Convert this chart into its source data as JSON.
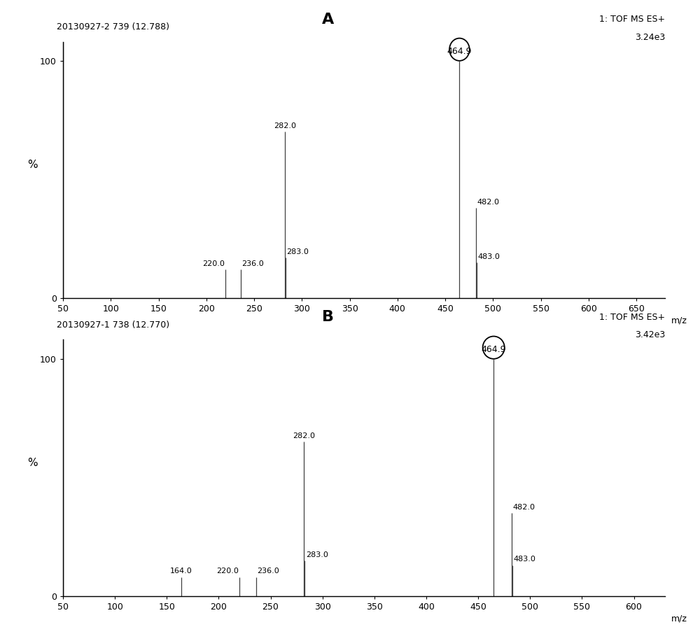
{
  "panel_A": {
    "title": "20130927-2 739 (12.788)",
    "label": "A",
    "info_line1": "1: TOF MS ES+",
    "info_line2": "3.24e3",
    "xlim": [
      50,
      680
    ],
    "ylim": [
      0,
      100
    ],
    "xticks": [
      50,
      100,
      150,
      200,
      250,
      300,
      350,
      400,
      450,
      500,
      550,
      600,
      650
    ],
    "peaks": [
      {
        "mz": 220.0,
        "intensity": 12,
        "label": "220.0",
        "label_side": "left",
        "circled": false
      },
      {
        "mz": 236.0,
        "intensity": 12,
        "label": "236.0",
        "label_side": "right",
        "circled": false
      },
      {
        "mz": 282.0,
        "intensity": 70,
        "label": "282.0",
        "label_side": "center",
        "circled": false
      },
      {
        "mz": 283.0,
        "intensity": 17,
        "label": "283.0",
        "label_side": "right",
        "circled": false
      },
      {
        "mz": 464.9,
        "intensity": 100,
        "label": "464.9",
        "label_side": "center",
        "circled": true
      },
      {
        "mz": 482.0,
        "intensity": 38,
        "label": "482.0",
        "label_side": "right",
        "circled": false
      },
      {
        "mz": 483.0,
        "intensity": 15,
        "label": "483.0",
        "label_side": "right",
        "circled": false
      }
    ]
  },
  "panel_B": {
    "title": "20130927-1 738 (12.770)",
    "label": "B",
    "info_line1": "1: TOF MS ES+",
    "info_line2": "3.42e3",
    "xlim": [
      50,
      630
    ],
    "ylim": [
      0,
      100
    ],
    "xticks": [
      50,
      100,
      150,
      200,
      250,
      300,
      350,
      400,
      450,
      500,
      550,
      600
    ],
    "peaks": [
      {
        "mz": 164.0,
        "intensity": 8,
        "label": "164.0",
        "label_side": "center",
        "circled": false
      },
      {
        "mz": 220.0,
        "intensity": 8,
        "label": "220.0",
        "label_side": "left",
        "circled": false
      },
      {
        "mz": 236.0,
        "intensity": 8,
        "label": "236.0",
        "label_side": "right",
        "circled": false
      },
      {
        "mz": 282.0,
        "intensity": 65,
        "label": "282.0",
        "label_side": "center",
        "circled": false
      },
      {
        "mz": 283.0,
        "intensity": 15,
        "label": "283.0",
        "label_side": "right",
        "circled": false
      },
      {
        "mz": 464.9,
        "intensity": 100,
        "label": "464.9",
        "label_side": "center",
        "circled": true
      },
      {
        "mz": 482.0,
        "intensity": 35,
        "label": "482.0",
        "label_side": "right",
        "circled": false
      },
      {
        "mz": 483.0,
        "intensity": 13,
        "label": "483.0",
        "label_side": "right",
        "circled": false
      }
    ]
  },
  "xlabel": "m/z",
  "ylabel": "%",
  "bg_color": "#ffffff",
  "line_color": "#404040",
  "spine_color": "#000000",
  "axes_positions": {
    "A": [
      0.09,
      0.535,
      0.86,
      0.4
    ],
    "B": [
      0.09,
      0.07,
      0.86,
      0.4
    ]
  },
  "figsize": [
    10.0,
    9.16
  ],
  "dpi": 100
}
